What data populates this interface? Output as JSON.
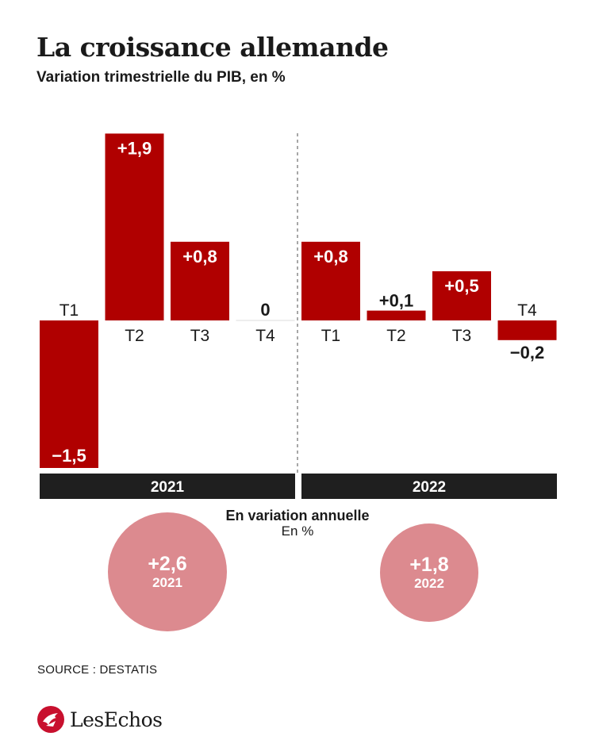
{
  "header": {
    "title": "La croissance allemande",
    "subtitle": "Variation trimestrielle du PIB, en %"
  },
  "colors": {
    "bar": "#b00000",
    "year_band": "#1f1f1f",
    "bubble": "#dc8a8f",
    "divider": "#8a8a8a"
  },
  "chart_data": {
    "type": "bar",
    "groups": [
      {
        "year": "2021",
        "categories": [
          "T1",
          "T2",
          "T3",
          "T4"
        ],
        "values": [
          -1.5,
          1.9,
          0.8,
          0
        ],
        "labels": [
          "−1,5",
          "+1,9",
          "+0,8",
          "0"
        ]
      },
      {
        "year": "2022",
        "categories": [
          "T1",
          "T2",
          "T3",
          "T4"
        ],
        "values": [
          0.8,
          0.1,
          0.5,
          -0.2
        ],
        "labels": [
          "+0,8",
          "+0,1",
          "+0,5",
          "−0,2"
        ]
      }
    ],
    "ylim": [
      -1.5,
      1.9
    ],
    "grid": false
  },
  "annual": {
    "title": "En variation annuelle",
    "unit": "En %",
    "items": [
      {
        "year": "2021",
        "label": "+2,6",
        "value": 2.6
      },
      {
        "year": "2022",
        "label": "+1,8",
        "value": 1.8
      }
    ]
  },
  "footer": {
    "source": "SOURCE : DESTATIS",
    "brand": "LesEchos",
    "brand_icon": "les-echos-logo-icon"
  }
}
